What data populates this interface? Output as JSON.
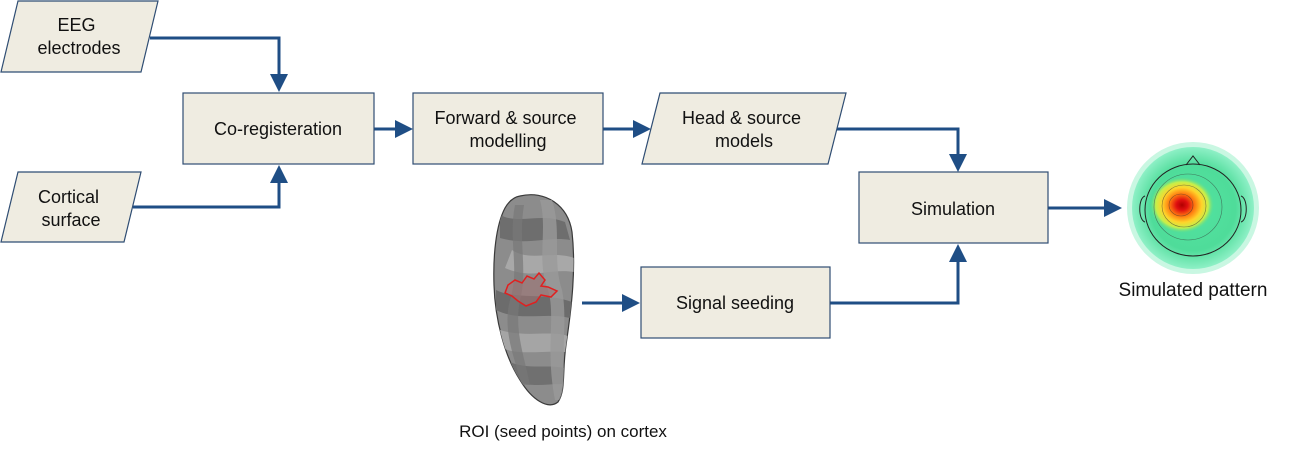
{
  "nodes": {
    "eeg_electrodes": {
      "lines": [
        "EEG",
        "electrodes"
      ]
    },
    "cortical_surface": {
      "lines": [
        "Cortical",
        "surface"
      ]
    },
    "coregistration": {
      "lines": [
        "Co-registeration"
      ]
    },
    "forward_source": {
      "lines": [
        "Forward & source",
        "modelling"
      ]
    },
    "head_source_models": {
      "lines": [
        "Head & source",
        "models"
      ]
    },
    "simulation": {
      "lines": [
        "Simulation"
      ]
    },
    "signal_seeding": {
      "lines": [
        "Signal seeding"
      ]
    }
  },
  "captions": {
    "roi": "ROI (seed points) on cortex",
    "simulated_pattern": "Simulated pattern"
  },
  "colors": {
    "box_fill": "#efece1",
    "box_stroke": "#2f4d73",
    "arrow": "#1f4e85",
    "roi_outline": "#e02020",
    "cortex_dark": "#6f6f6f",
    "cortex_light": "#a9a9a9"
  }
}
